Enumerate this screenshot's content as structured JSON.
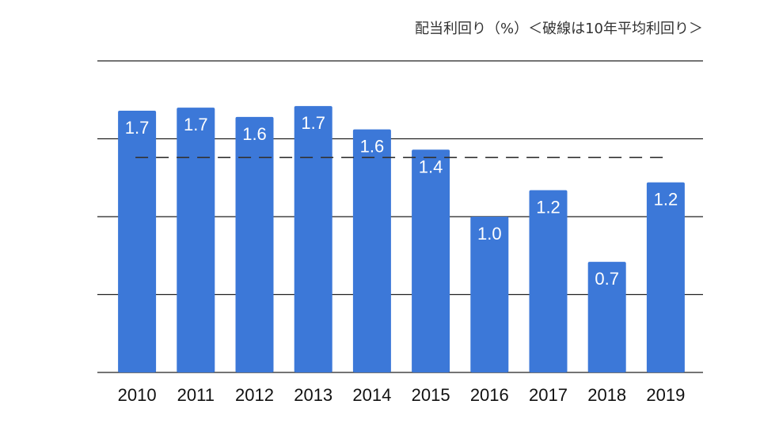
{
  "chart_data": {
    "type": "bar",
    "title": "配当利回り（%）＜破線は10年平均利回り＞",
    "categories": [
      "2010",
      "2011",
      "2012",
      "2013",
      "2014",
      "2015",
      "2016",
      "2017",
      "2018",
      "2019"
    ],
    "values": [
      1.68,
      1.7,
      1.64,
      1.71,
      1.56,
      1.43,
      1.0,
      1.17,
      0.71,
      1.22
    ],
    "data_labels": [
      "1.7",
      "1.7",
      "1.6",
      "1.7",
      "1.6",
      "1.4",
      "1.0",
      "1.2",
      "0.7",
      "1.2"
    ],
    "average_line": {
      "value": 1.38,
      "style": "dashed"
    },
    "ylim": [
      0,
      2.0
    ],
    "gridlines": [
      0,
      0.5,
      1.0,
      1.5,
      2.0
    ],
    "grid": true,
    "bar_color": "#3c78d8",
    "grid_color": "#222222",
    "label_color": "#ffffff"
  }
}
